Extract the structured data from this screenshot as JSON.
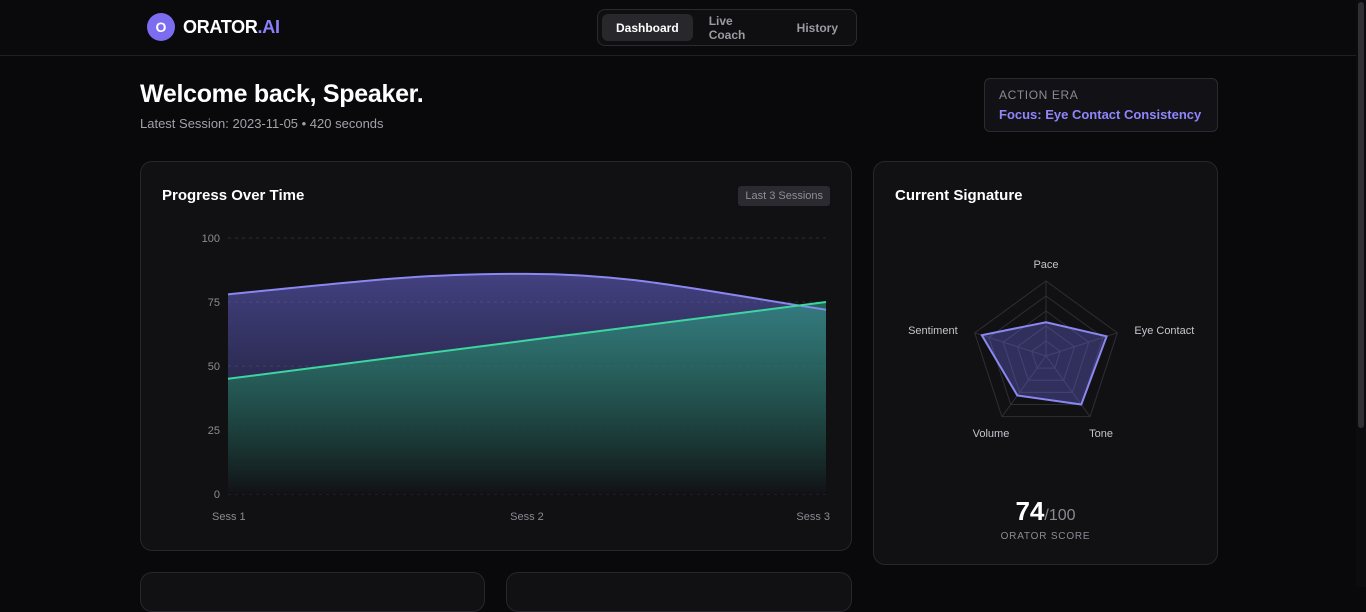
{
  "brand": {
    "mark": "O",
    "name": "ORATOR",
    "accent": ".AI"
  },
  "nav": {
    "tabs": [
      {
        "label": "Dashboard",
        "active": true
      },
      {
        "label": "Live Coach"
      },
      {
        "label": "History"
      }
    ]
  },
  "welcome": {
    "title": "Welcome back, Speaker.",
    "subtitle": "Latest Session: 2023-11-05 • 420 seconds"
  },
  "action": {
    "label": "ACTION ERA",
    "focus": "Focus: Eye Contact Consistency"
  },
  "progress": {
    "title": "Progress Over Time",
    "badge": "Last 3 Sessions"
  },
  "signature": {
    "title": "Current Signature",
    "score": "74",
    "score_max": "/100",
    "score_label": "ORATOR SCORE"
  },
  "colors": {
    "accent": "#8b80f8",
    "purple_line": "#8a88f0",
    "green_line": "#3dd6a0"
  },
  "chart_data": [
    {
      "type": "area",
      "categories": [
        "Sess 1",
        "Sess 2",
        "Sess 3"
      ],
      "ylim": [
        0,
        100
      ],
      "yticks": [
        0,
        25,
        50,
        75,
        100
      ],
      "grid": true,
      "series": [
        {
          "values": [
            78,
            86,
            72
          ],
          "color": "#8a88f0"
        },
        {
          "values": [
            45,
            60,
            75
          ],
          "color": "#3dd6a0"
        }
      ]
    },
    {
      "type": "radar",
      "axes": [
        "Pace",
        "Eye Contact",
        "Tone",
        "Volume",
        "Sentiment"
      ],
      "max": 100,
      "values": [
        45,
        85,
        80,
        65,
        90
      ],
      "color": "#8a88f0"
    }
  ]
}
